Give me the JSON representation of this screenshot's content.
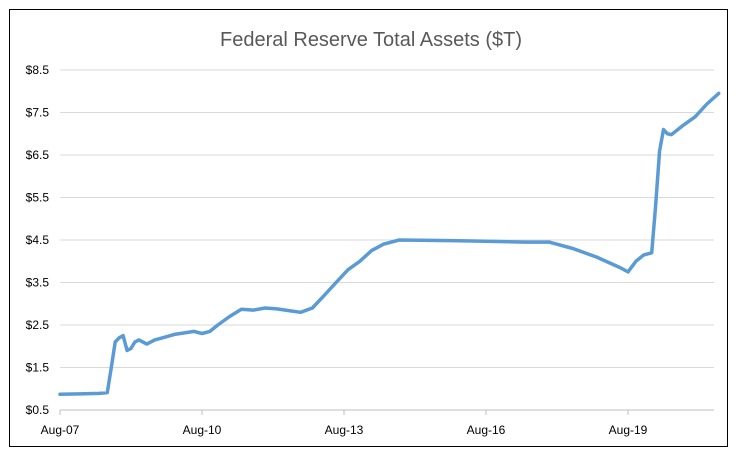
{
  "chart_data": {
    "type": "line",
    "title": "Federal Reserve Total Assets ($T)",
    "xlabel": "",
    "ylabel": "",
    "y_ticks": [
      "$0.5",
      "$1.5",
      "$2.5",
      "$3.5",
      "$4.5",
      "$5.5",
      "$6.5",
      "$7.5",
      "$8.5"
    ],
    "x_ticks": [
      "Aug-07",
      "Aug-10",
      "Aug-13",
      "Aug-16",
      "Aug-19"
    ],
    "ylim": [
      0.5,
      8.5
    ],
    "xlim": [
      "2007-08",
      "2021-07"
    ],
    "grid": true,
    "legend": "none",
    "line_color": "#5b9bd5",
    "series": [
      {
        "x": [
          "2007-08",
          "2008-01",
          "2008-06",
          "2008-08",
          "2008-09",
          "2008-10",
          "2008-11",
          "2008-12",
          "2009-01",
          "2009-02",
          "2009-03",
          "2009-04",
          "2009-06",
          "2009-08",
          "2009-10",
          "2010-01",
          "2010-04",
          "2010-06",
          "2010-08",
          "2010-10",
          "2010-12",
          "2011-03",
          "2011-06",
          "2011-09",
          "2011-12",
          "2012-03",
          "2012-06",
          "2012-09",
          "2012-12",
          "2013-03",
          "2013-06",
          "2013-09",
          "2013-12",
          "2014-03",
          "2014-06",
          "2014-10",
          "2015-06",
          "2016-01",
          "2016-08",
          "2017-06",
          "2017-12",
          "2018-06",
          "2018-12",
          "2019-06",
          "2019-08",
          "2019-10",
          "2019-12",
          "2020-02",
          "2020-03",
          "2020-04",
          "2020-05",
          "2020-06",
          "2020-07",
          "2020-10",
          "2021-01",
          "2021-04",
          "2021-07"
        ],
        "values": [
          0.87,
          0.88,
          0.89,
          0.91,
          1.5,
          2.1,
          2.2,
          2.25,
          1.9,
          1.95,
          2.1,
          2.15,
          2.05,
          2.15,
          2.2,
          2.28,
          2.32,
          2.35,
          2.3,
          2.35,
          2.5,
          2.7,
          2.87,
          2.85,
          2.9,
          2.88,
          2.84,
          2.8,
          2.9,
          3.2,
          3.5,
          3.8,
          4.0,
          4.25,
          4.4,
          4.5,
          4.49,
          4.48,
          4.47,
          4.45,
          4.45,
          4.3,
          4.1,
          3.85,
          3.75,
          4.0,
          4.15,
          4.2,
          5.3,
          6.6,
          7.1,
          7.0,
          6.98,
          7.2,
          7.4,
          7.7,
          7.95
        ]
      }
    ]
  }
}
